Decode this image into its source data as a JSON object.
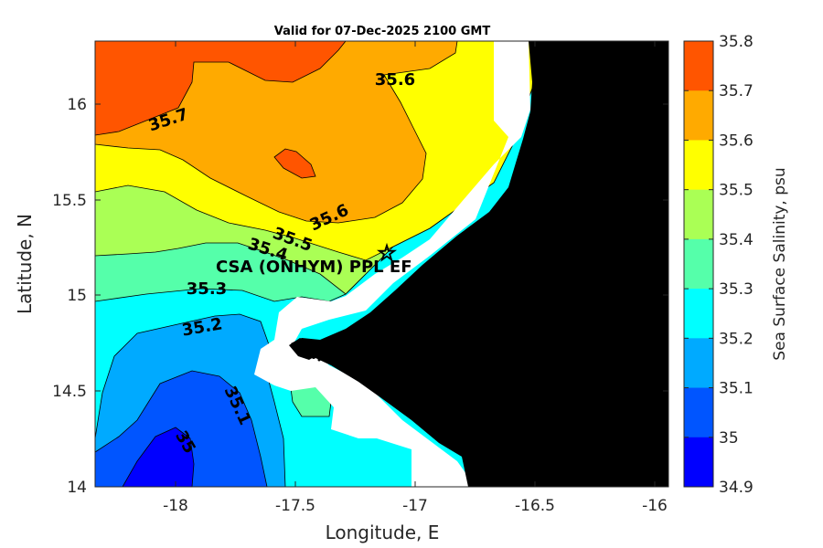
{
  "title": "Valid for 07-Dec-2025 2100 GMT",
  "x_axis": {
    "label": "Longitude, E",
    "ticks": [
      "-18",
      "-17.5",
      "-17",
      "-16.5",
      "-16"
    ]
  },
  "y_axis": {
    "label": "Latitude, N",
    "ticks": [
      "16",
      "15.5",
      "15",
      "14.5",
      "14"
    ]
  },
  "colorbar": {
    "label": "Sea Surface Salinity, psu",
    "ticks": [
      "35.8",
      "35.7",
      "35.6",
      "35.5",
      "35.4",
      "35.3",
      "35.2",
      "35.1",
      "35",
      "34.9"
    ],
    "colors": [
      "#ff5500",
      "#ffaa00",
      "#ffff00",
      "#aaff55",
      "#55ffaa",
      "#00ffff",
      "#00aaff",
      "#0055ff",
      "#0000ff"
    ]
  },
  "contour_labels": [
    "35.7",
    "35.6",
    "35.6",
    "35.5",
    "35.4",
    "35.3",
    "35.2",
    "35.1",
    "35"
  ],
  "site": {
    "marker": "☆",
    "label": "CSA (ONHYM) PPL EF"
  },
  "chart_data": {
    "type": "heatmap",
    "title": "Valid for 07-Dec-2025 2100 GMT",
    "xlabel": "Longitude, E",
    "ylabel": "Latitude, N",
    "xlim": [
      -18.35,
      -15.93
    ],
    "ylim": [
      14.0,
      16.33
    ],
    "levels": [
      34.9,
      35.0,
      35.1,
      35.2,
      35.3,
      35.4,
      35.5,
      35.6,
      35.7,
      35.8
    ],
    "variable": "Sea Surface Salinity, psu",
    "site": {
      "name": "CSA (ONHYM) PPL EF",
      "lon": -17.12,
      "lat": 15.22
    }
  }
}
